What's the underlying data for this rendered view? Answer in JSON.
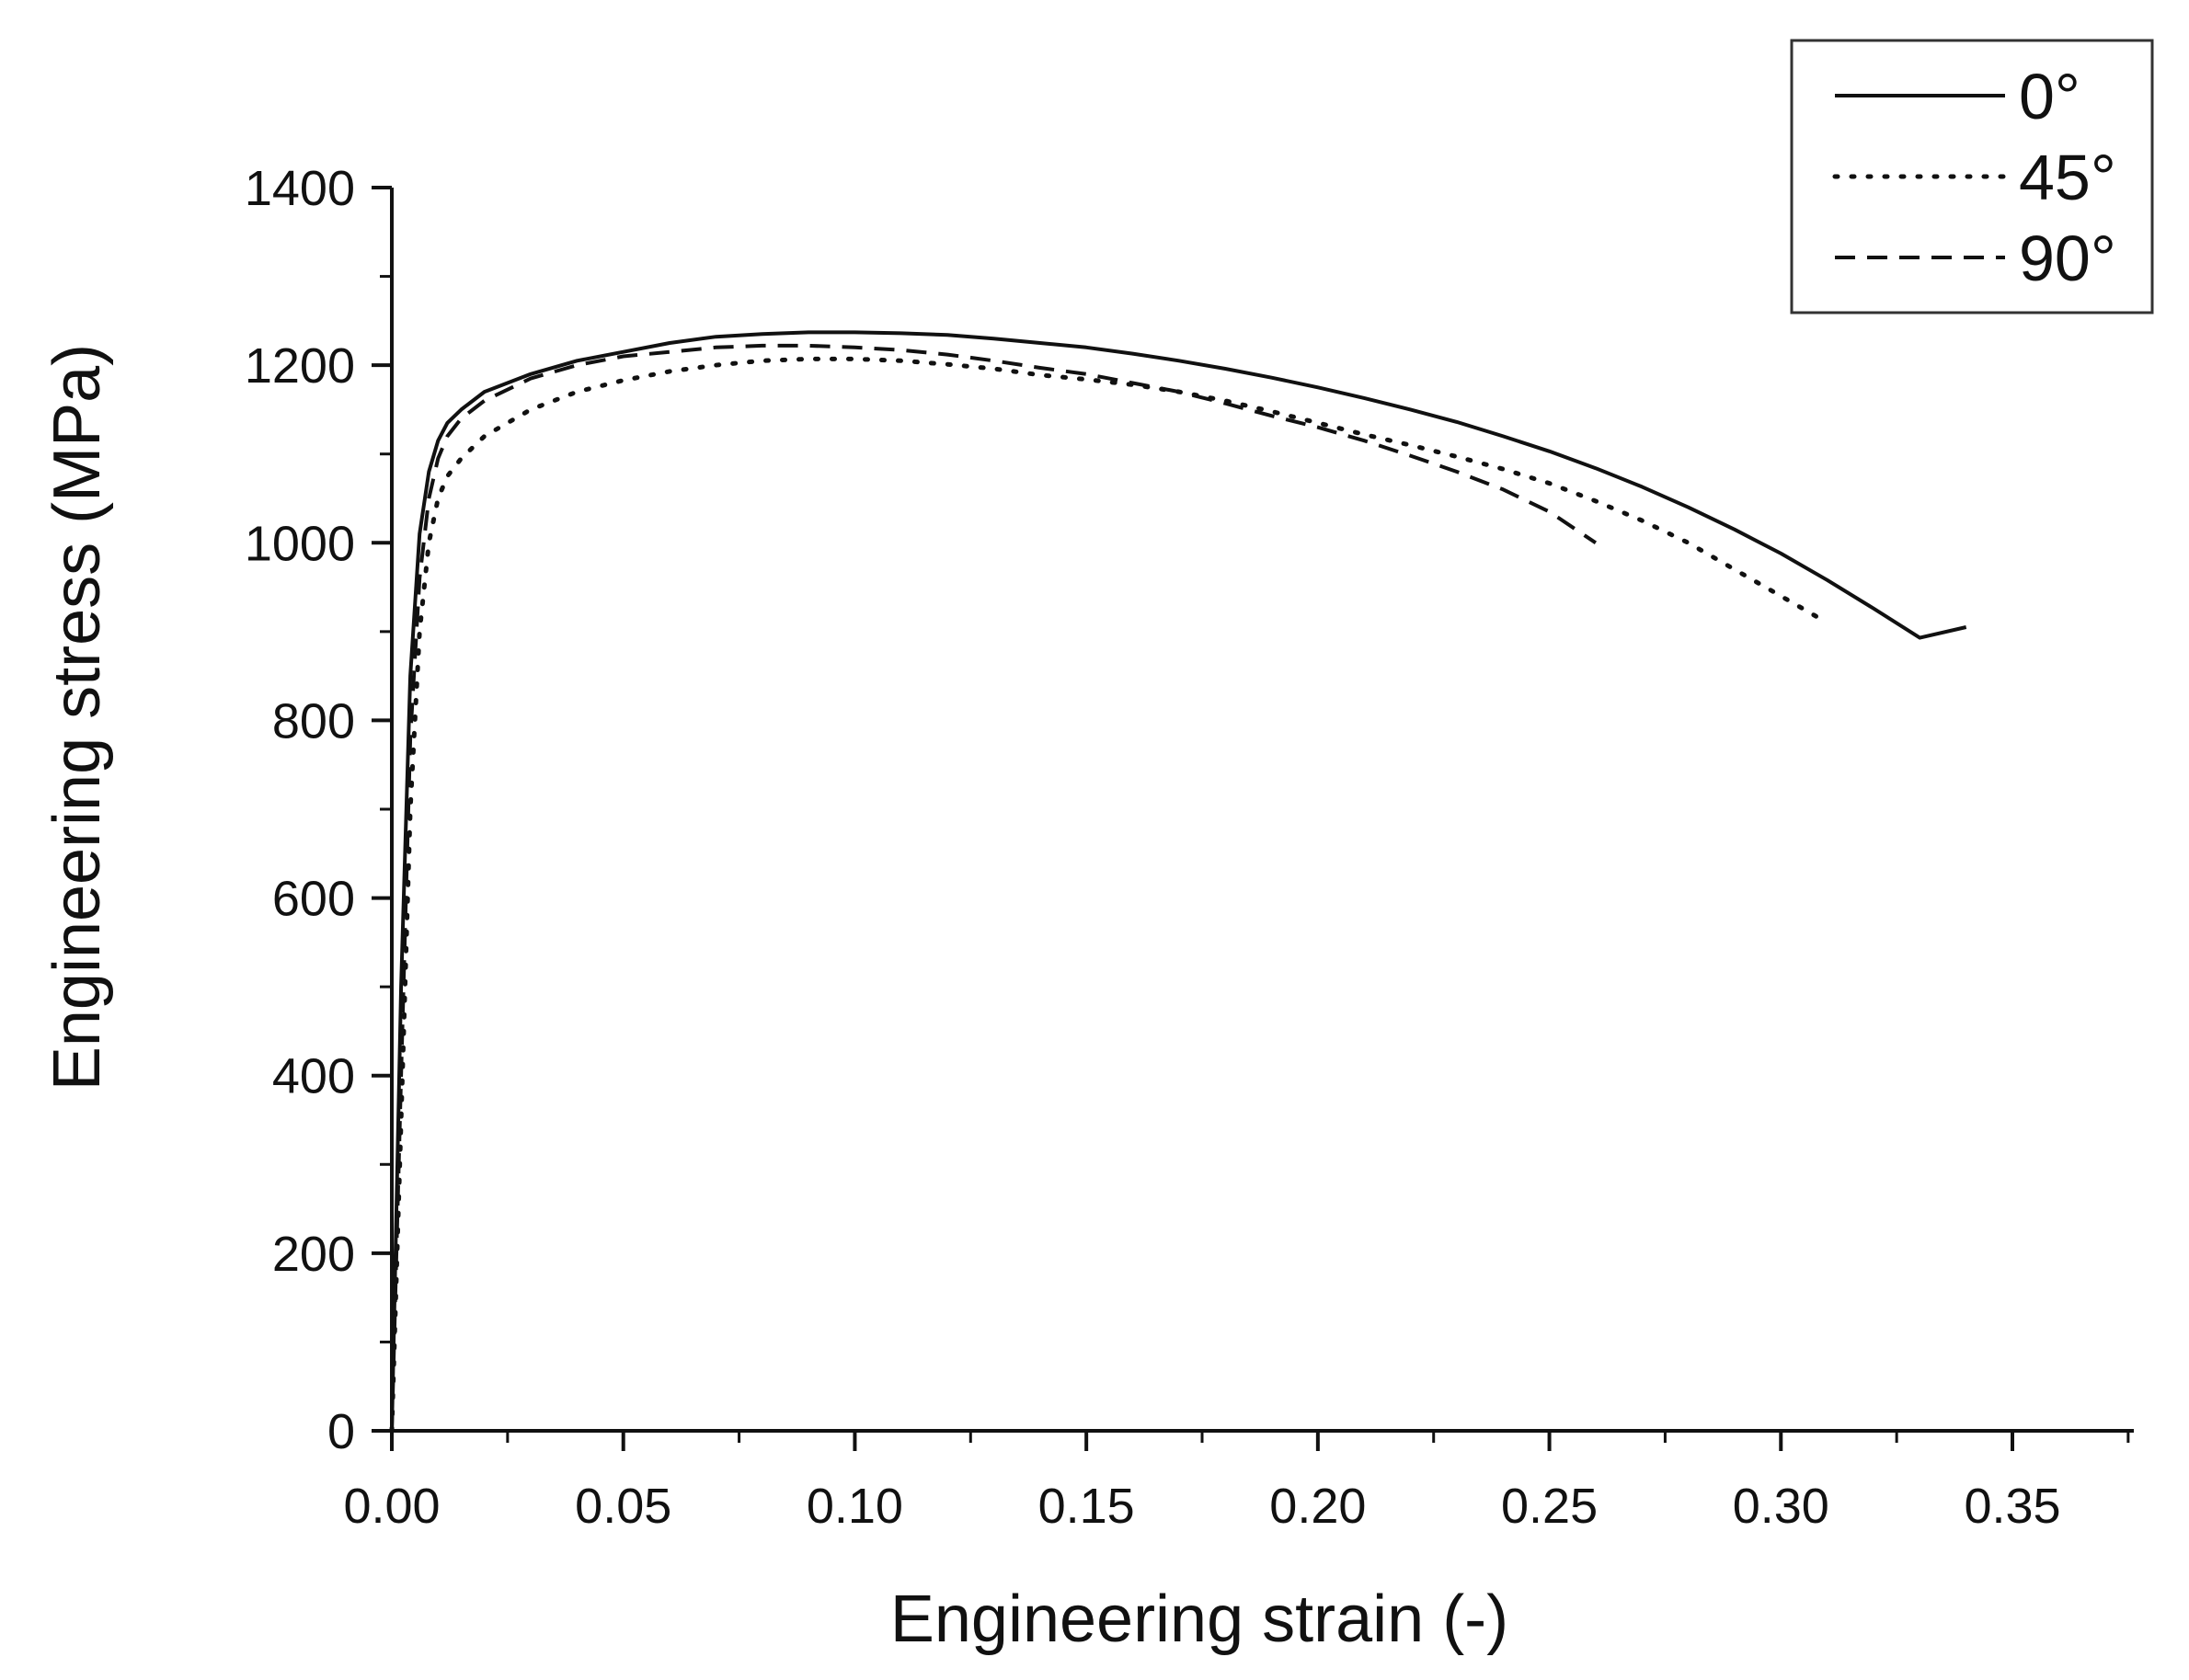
{
  "chart_data": {
    "type": "line",
    "title": "",
    "xlabel": "Engineering strain (-)",
    "ylabel": "Engineering stress (MPa)",
    "xlim": [
      0,
      0.375
    ],
    "ylim": [
      0,
      1400
    ],
    "x_ticks": [
      0,
      0.05,
      0.1,
      0.15,
      0.2,
      0.25,
      0.3,
      0.35
    ],
    "x_tick_labels": [
      "0.00",
      "0.05",
      "0.10",
      "0.15",
      "0.20",
      "0.25",
      "0.30",
      "0.35"
    ],
    "y_ticks": [
      0,
      200,
      400,
      600,
      800,
      1000,
      1200,
      1400
    ],
    "y_tick_labels": [
      "0",
      "200",
      "400",
      "600",
      "800",
      "1000",
      "1200",
      "1400"
    ],
    "grid": false,
    "legend_position": "top-right",
    "series": [
      {
        "name": "0°",
        "style": "solid",
        "color": "#111111",
        "x": [
          0,
          0.002,
          0.004,
          0.006,
          0.008,
          0.01,
          0.012,
          0.015,
          0.02,
          0.03,
          0.04,
          0.05,
          0.06,
          0.07,
          0.08,
          0.09,
          0.1,
          0.11,
          0.12,
          0.13,
          0.14,
          0.15,
          0.16,
          0.17,
          0.18,
          0.19,
          0.2,
          0.21,
          0.22,
          0.23,
          0.24,
          0.25,
          0.26,
          0.27,
          0.28,
          0.29,
          0.3,
          0.31,
          0.32,
          0.33,
          0.34
        ],
        "y": [
          0,
          500,
          850,
          1010,
          1080,
          1115,
          1135,
          1150,
          1170,
          1190,
          1205,
          1215,
          1225,
          1232,
          1235,
          1237,
          1237,
          1236,
          1234,
          1230,
          1225,
          1220,
          1213,
          1205,
          1196,
          1186,
          1175,
          1163,
          1150,
          1136,
          1120,
          1103,
          1084,
          1063,
          1040,
          1015,
          988,
          958,
          926,
          893,
          905
        ]
      },
      {
        "name": "45°",
        "style": "dotted",
        "color": "#111111",
        "x": [
          0,
          0.002,
          0.004,
          0.006,
          0.008,
          0.01,
          0.012,
          0.015,
          0.02,
          0.03,
          0.04,
          0.05,
          0.06,
          0.07,
          0.08,
          0.09,
          0.1,
          0.11,
          0.12,
          0.13,
          0.14,
          0.15,
          0.16,
          0.17,
          0.18,
          0.19,
          0.2,
          0.21,
          0.22,
          0.23,
          0.24,
          0.25,
          0.26,
          0.27,
          0.28,
          0.29,
          0.3,
          0.31
        ],
        "y": [
          0,
          350,
          700,
          900,
          1000,
          1050,
          1075,
          1095,
          1120,
          1150,
          1170,
          1183,
          1193,
          1200,
          1205,
          1207,
          1207,
          1205,
          1201,
          1196,
          1189,
          1184,
          1178,
          1170,
          1160,
          1148,
          1135,
          1122,
          1110,
          1097,
          1083,
          1067,
          1047,
          1025,
          1000,
          970,
          940,
          910
        ]
      },
      {
        "name": "90°",
        "style": "dashed",
        "color": "#111111",
        "x": [
          0,
          0.002,
          0.004,
          0.006,
          0.008,
          0.01,
          0.012,
          0.015,
          0.02,
          0.03,
          0.04,
          0.05,
          0.06,
          0.07,
          0.08,
          0.09,
          0.1,
          0.11,
          0.12,
          0.13,
          0.14,
          0.15,
          0.16,
          0.17,
          0.18,
          0.19,
          0.2,
          0.21,
          0.22,
          0.23,
          0.24,
          0.25,
          0.26
        ],
        "y": [
          0,
          400,
          780,
          960,
          1050,
          1095,
          1120,
          1140,
          1160,
          1185,
          1200,
          1210,
          1215,
          1220,
          1222,
          1222,
          1220,
          1217,
          1212,
          1205,
          1197,
          1190,
          1180,
          1170,
          1157,
          1143,
          1130,
          1115,
          1098,
          1080,
          1060,
          1035,
          1000
        ]
      }
    ]
  }
}
